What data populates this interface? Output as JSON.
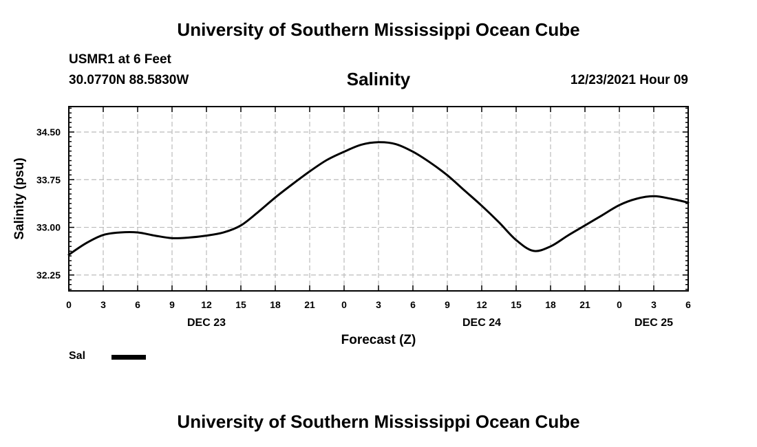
{
  "header": {
    "title": "University of Southern Mississippi Ocean Cube",
    "station": "USMR1 at 6 Feet",
    "coordinates": "30.0770N  88.5830W",
    "variable": "Salinity",
    "timestamp": "12/23/2021 Hour 09"
  },
  "footer": {
    "title": "University of Southern Mississippi Ocean Cube"
  },
  "legend": {
    "label": "Sal",
    "color": "#000000"
  },
  "chart_data": {
    "type": "line",
    "title": "Salinity",
    "xlabel": "Forecast (Z)",
    "ylabel": "Salinity (psu)",
    "xlim": [
      0,
      54
    ],
    "ylim": [
      32.0,
      34.9
    ],
    "yticks": [
      32.25,
      33.0,
      33.75,
      34.5
    ],
    "ytick_labels": [
      "32.25",
      "33.00",
      "33.75",
      "34.50"
    ],
    "xticks": [
      0,
      3,
      6,
      9,
      12,
      15,
      18,
      21,
      24,
      27,
      30,
      33,
      36,
      39,
      42,
      45,
      48,
      51,
      54
    ],
    "xtick_labels": [
      "0",
      "3",
      "6",
      "9",
      "12",
      "15",
      "18",
      "21",
      "0",
      "3",
      "6",
      "9",
      "12",
      "15",
      "18",
      "21",
      "0",
      "3",
      "6"
    ],
    "day_labels": [
      {
        "x": 12,
        "label": "DEC 23"
      },
      {
        "x": 36,
        "label": "DEC 24"
      },
      {
        "x": 51,
        "label": "DEC 25"
      }
    ],
    "grid": true,
    "series": [
      {
        "name": "Sal",
        "color": "#000000",
        "x": [
          0,
          1.5,
          3,
          4.5,
          6,
          7.5,
          9,
          10.5,
          12,
          13.5,
          15,
          16.5,
          18,
          19.5,
          21,
          22.5,
          24,
          25.5,
          27,
          28.5,
          30,
          31.5,
          33,
          34.5,
          36,
          37.5,
          39,
          40.5,
          42,
          43.5,
          45,
          46.5,
          48,
          49.5,
          51,
          52.5,
          54
        ],
        "values": [
          32.57,
          32.75,
          32.88,
          32.92,
          32.92,
          32.87,
          32.83,
          32.84,
          32.87,
          32.92,
          33.03,
          33.24,
          33.47,
          33.68,
          33.88,
          34.06,
          34.19,
          34.3,
          34.34,
          34.31,
          34.19,
          34.02,
          33.82,
          33.58,
          33.34,
          33.08,
          32.8,
          32.63,
          32.7,
          32.87,
          33.03,
          33.19,
          33.35,
          33.45,
          33.49,
          33.45,
          33.39
        ]
      }
    ]
  }
}
